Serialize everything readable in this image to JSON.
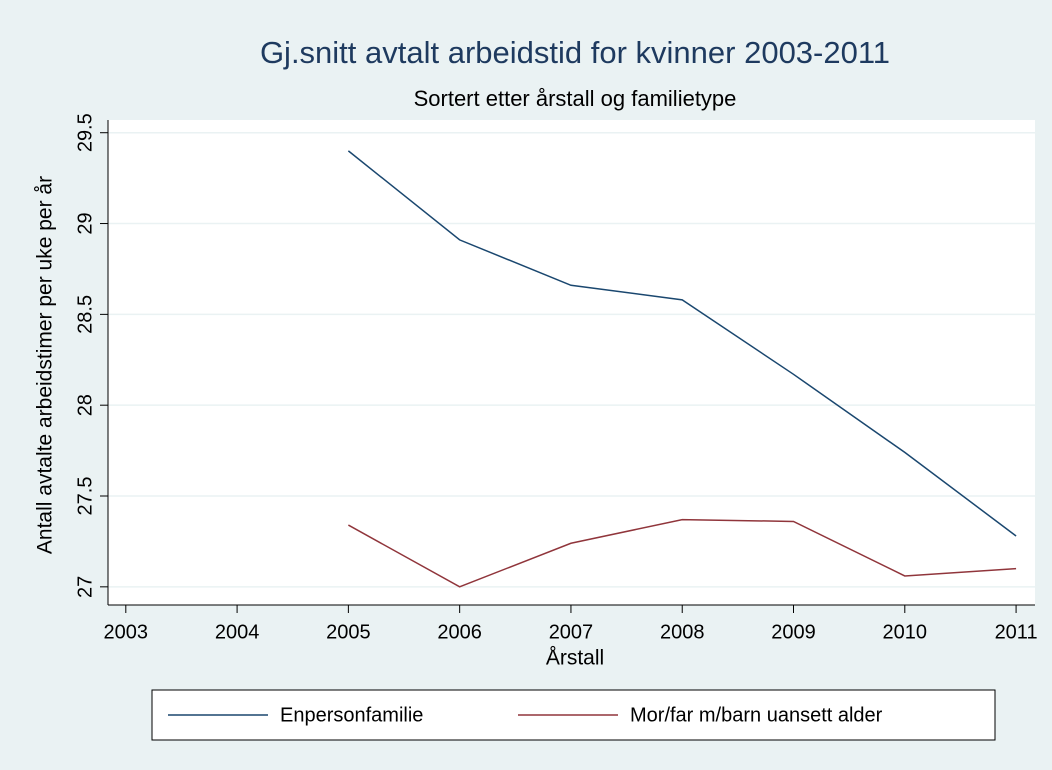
{
  "chart_data": {
    "type": "line",
    "title": "Gj.snitt avtalt arbeidstid for kvinner 2003-2011",
    "subtitle": "Sortert etter årstall og familietype",
    "x_label": "Årstall",
    "y_label": "Antall avtalte arbeidstimer per uke per år",
    "x": [
      2005,
      2006,
      2007,
      2008,
      2009,
      2010,
      2011
    ],
    "series": [
      {
        "name": "Enpersonfamilie",
        "color": "#1a476f",
        "values": [
          29.4,
          28.91,
          28.66,
          28.58,
          28.17,
          27.74,
          27.28
        ]
      },
      {
        "name": "Mor/far m/barn uansett alder",
        "color": "#90353b",
        "values": [
          27.34,
          27.0,
          27.24,
          27.37,
          27.36,
          27.06,
          27.1
        ]
      }
    ],
    "xlim": [
      2002.84,
      2011.17
    ],
    "xticks": [
      2003,
      2004,
      2005,
      2006,
      2007,
      2008,
      2009,
      2010,
      2011
    ],
    "ylim": [
      26.9,
      29.57
    ],
    "yticks": [
      27,
      27.5,
      28,
      28.5,
      29,
      29.5
    ],
    "grid": true,
    "legend": "bottom"
  }
}
